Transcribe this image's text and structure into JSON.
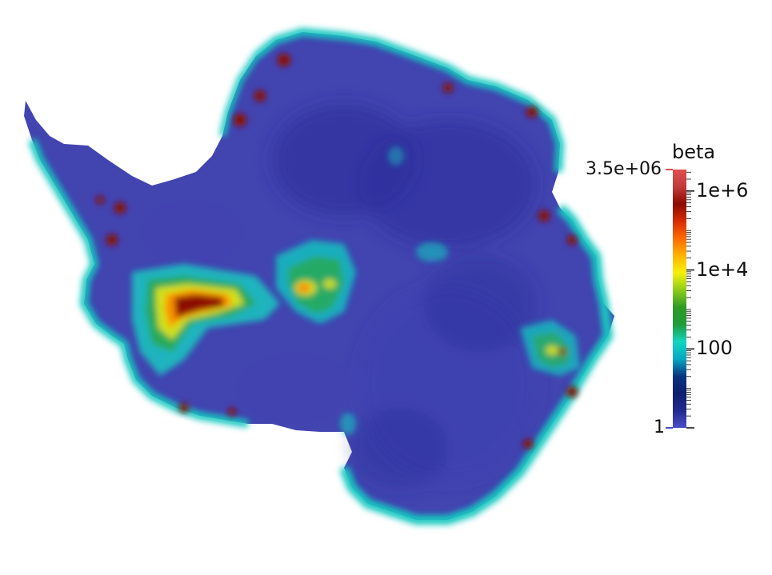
{
  "colorbar": {
    "title": "beta",
    "max_label": "3.5e+06",
    "min_label": "1",
    "scale": "log",
    "range": [
      1,
      3500000
    ],
    "ticks": [
      {
        "label": "1e+6",
        "value": 1000000
      },
      {
        "label": "1e+4",
        "value": 10000
      },
      {
        "label": "100",
        "value": 100
      }
    ],
    "stops": [
      "#4a4ec8",
      "#1f2a8e",
      "#0f1d6e",
      "#08357f",
      "#06a8c3",
      "#10d5bf",
      "#1f9b3a",
      "#2e9a22",
      "#8ecc1a",
      "#f5f10a",
      "#ffb400",
      "#ff6a00",
      "#d82c00",
      "#8b0a00",
      "#c23a3a",
      "#e05050"
    ]
  },
  "map": {
    "field": "beta",
    "colors": {
      "background": "#ffffff",
      "base": "#4244b0",
      "deep": "#2b2d9a",
      "interior": "#3a3fb0",
      "cyan": "#14c8c0",
      "green": "#2aa840",
      "yellow": "#f2ea0e",
      "orange": "#ff8a00",
      "red": "#8c0c00"
    }
  }
}
